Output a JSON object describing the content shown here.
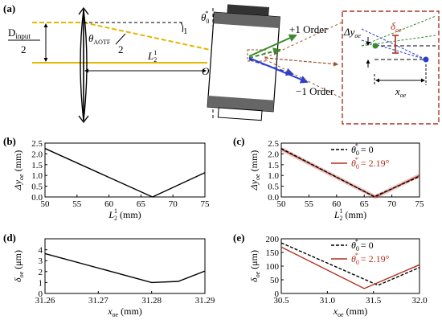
{
  "panel_labels": [
    "(a)",
    "(b)",
    "(c)",
    "(d)",
    "(e)"
  ],
  "diagram": {
    "d_input_numerator": "D",
    "d_input_sub": "input",
    "d_input_denominator": "2",
    "theta_aotf": "θ",
    "theta_aotf_sub": "AOTF",
    "theta_aotf_den": "2",
    "L2": "L",
    "L2_sub": "2",
    "L2_sup": "1",
    "theta0_symbol": "θ",
    "theta0_sub": "0",
    "theta0_sup": "*",
    "origin": "O",
    "plus_order": "+1 Order",
    "minus_order": "−1 Order",
    "inset_dy": "Δy",
    "inset_dy_sub": "oe",
    "inset_delta": "δ",
    "inset_delta_sub": "oe",
    "inset_x": "x",
    "inset_x_sub": "oe",
    "colors": {
      "yellow": "#e3b700",
      "green": "#3a8a2a",
      "blue": "#2b3ed0",
      "red": "#b03020",
      "brown": "#a0522d"
    }
  },
  "chart_data": [
    {
      "panel": "(b)",
      "type": "line",
      "xlabel": "L",
      "xlabel_sub": "2",
      "xlabel_sup": "1",
      "xlabel_unit": "(mm)",
      "ylabel": "Δy",
      "ylabel_sub": "oe",
      "ylabel_unit": "(mm)",
      "xlim": [
        50,
        75
      ],
      "ylim": [
        0,
        2.5
      ],
      "xticks": [
        50,
        55,
        60,
        65,
        70,
        75
      ],
      "xtick_labels": [
        "50",
        "55",
        "60",
        "65",
        "70",
        "75"
      ],
      "yticks": [
        0,
        0.5,
        1.0,
        1.5,
        2.0,
        2.5
      ],
      "ytick_labels": [
        "0.0",
        "0.5",
        "1.0",
        "1.5",
        "2.0",
        "2.5"
      ],
      "series": [
        {
          "color": "#000000",
          "dash": false,
          "x": [
            50,
            66.8,
            75
          ],
          "y": [
            2.25,
            0.0,
            1.13
          ]
        }
      ]
    },
    {
      "panel": "(c)",
      "type": "line",
      "xlabel": "L",
      "xlabel_sub": "2",
      "xlabel_sup": "1",
      "xlabel_unit": "(mm)",
      "ylabel": "Δy",
      "ylabel_sub": "oe",
      "ylabel_unit": "(mm)",
      "xlim": [
        50,
        75
      ],
      "ylim": [
        0,
        2.5
      ],
      "xticks": [
        50,
        55,
        60,
        65,
        70,
        75
      ],
      "xtick_labels": [
        "50",
        "55",
        "60",
        "65",
        "70",
        "75"
      ],
      "yticks": [
        0,
        0.5,
        1.0,
        1.5,
        2.0,
        2.5
      ],
      "ytick_labels": [
        "0.0",
        "0.5",
        "1.0",
        "1.5",
        "2.0",
        "2.5"
      ],
      "legend": [
        {
          "symbol": "θ",
          "sub": "0",
          "sup": "*",
          "value": "= 0",
          "color": "#000000",
          "dash": true
        },
        {
          "symbol": "θ",
          "sub": "0",
          "sup": "*",
          "value": "= 2.19°",
          "color": "#b03020",
          "dash": false
        }
      ],
      "series": [
        {
          "color": "#b03020",
          "dash": false,
          "glow": true,
          "x": [
            50,
            67.0,
            75
          ],
          "y": [
            2.22,
            0.0,
            1.0
          ]
        },
        {
          "color": "#000000",
          "dash": true,
          "x": [
            50,
            66.8,
            75
          ],
          "y": [
            2.25,
            0.02,
            0.95
          ]
        }
      ]
    },
    {
      "panel": "(d)",
      "type": "line",
      "xlabel": "x",
      "xlabel_sub": "oe",
      "xlabel_unit": "(mm)",
      "ylabel": "δ",
      "ylabel_sub": "oe",
      "ylabel_unit": "(μm)",
      "xlim": [
        31.26,
        31.29
      ],
      "ylim": [
        0,
        5
      ],
      "xticks": [
        31.26,
        31.27,
        31.28,
        31.29
      ],
      "xtick_labels": [
        "31.26",
        "31.27",
        "31.28",
        "31.29"
      ],
      "yticks": [
        0,
        1,
        2,
        3,
        4
      ],
      "ytick_labels": [
        "0",
        "1",
        "2",
        "3",
        "4"
      ],
      "series": [
        {
          "color": "#000000",
          "dash": false,
          "x": [
            31.26,
            31.28,
            31.285,
            31.29
          ],
          "y": [
            3.65,
            1.0,
            1.1,
            2.05
          ]
        }
      ]
    },
    {
      "panel": "(e)",
      "type": "line",
      "xlabel": "x",
      "xlabel_sub": "oe",
      "xlabel_unit": "(mm)",
      "ylabel": "δ",
      "ylabel_sub": "oe",
      "ylabel_unit": "(μm)",
      "xlim": [
        30.5,
        32.0
      ],
      "ylim": [
        0,
        200
      ],
      "xticks": [
        30.5,
        31.0,
        31.5,
        32.0
      ],
      "xtick_labels": [
        "30.5",
        "31.0",
        "31.5",
        "32.0"
      ],
      "yticks": [
        0,
        50,
        100,
        150,
        200
      ],
      "ytick_labels": [
        "0",
        "50",
        "100",
        "150",
        "200"
      ],
      "legend": [
        {
          "symbol": "θ",
          "sub": "0",
          "sup": "*",
          "value": "= 0",
          "color": "#000000",
          "dash": true
        },
        {
          "symbol": "θ",
          "sub": "0",
          "sup": "*",
          "value": "= 2.19°",
          "color": "#b03020",
          "dash": false
        }
      ],
      "series": [
        {
          "color": "#000000",
          "dash": true,
          "x": [
            30.5,
            31.55,
            32.0
          ],
          "y": [
            185,
            30,
            95
          ]
        },
        {
          "color": "#b03020",
          "dash": false,
          "x": [
            30.5,
            31.4,
            32.0
          ],
          "y": [
            170,
            18,
            105
          ]
        }
      ]
    }
  ]
}
